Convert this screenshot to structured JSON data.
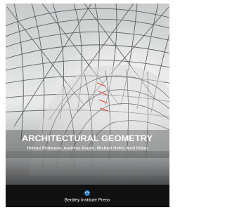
{
  "cover": {
    "title": "ARCHITECTURAL GEOMETRY",
    "authors": "Helmut Pottmann, Andreas Asperl, Michael Hofer, Axel Kilian",
    "publisher": "Bentley Institute Press"
  }
}
